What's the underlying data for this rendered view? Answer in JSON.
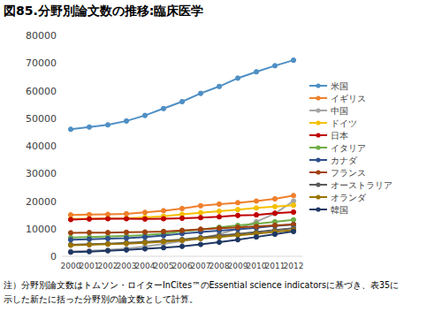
{
  "chart_data": {
    "type": "line",
    "title": "図85.分野別論文数の推移:臨床医学",
    "note": [
      "注）分野別論文数はトムソン・ロイターInCites™のEssential science indicatorsに基づき、表35に",
      "示した新たに括った分野別の論文数として計算。"
    ],
    "categories": [
      "2000",
      "2001",
      "2002",
      "2003",
      "2004",
      "2005",
      "2006",
      "2007",
      "2008",
      "2009",
      "2010",
      "2011",
      "2012"
    ],
    "ylim": [
      0,
      80000
    ],
    "yticks": [
      0,
      10000,
      20000,
      30000,
      40000,
      50000,
      60000,
      70000,
      80000
    ],
    "grid": false,
    "legend": "right",
    "marker": "circle",
    "series": [
      {
        "name": "米国",
        "color": "#4f8fc4",
        "values": [
          46000,
          46800,
          47600,
          49000,
          51000,
          53500,
          56000,
          59000,
          61500,
          64500,
          66800,
          69000,
          71000
        ]
      },
      {
        "name": "イギリス",
        "color": "#f0802c",
        "values": [
          15000,
          15100,
          15200,
          15400,
          15900,
          16500,
          17300,
          18300,
          18900,
          19400,
          20000,
          20800,
          22000
        ]
      },
      {
        "name": "中国",
        "color": "#a5a5a5",
        "values": [
          1800,
          2000,
          2300,
          2800,
          3500,
          4500,
          5500,
          6500,
          8000,
          10000,
          12500,
          15500,
          20000
        ]
      },
      {
        "name": "ドイツ",
        "color": "#f5c000",
        "values": [
          13500,
          13600,
          13700,
          13800,
          14100,
          14500,
          15200,
          15800,
          16300,
          16900,
          17500,
          18000,
          18500
        ]
      },
      {
        "name": "日本",
        "color": "#c00000",
        "values": [
          13300,
          13500,
          13600,
          13600,
          13500,
          13600,
          13800,
          14000,
          14300,
          14800,
          15000,
          15600,
          16000
        ]
      },
      {
        "name": "イタリア",
        "color": "#70ad47",
        "values": [
          6800,
          7000,
          7200,
          7400,
          7700,
          8200,
          9000,
          9700,
          10500,
          11200,
          11800,
          12500,
          13200
        ]
      },
      {
        "name": "カナダ",
        "color": "#2e4f8c",
        "values": [
          6000,
          6200,
          6400,
          6600,
          7000,
          7500,
          8200,
          8800,
          9300,
          9800,
          10300,
          11000,
          11500
        ]
      },
      {
        "name": "フランス",
        "color": "#a0420e",
        "values": [
          8500,
          8600,
          8600,
          8700,
          8800,
          9000,
          9400,
          9800,
          10200,
          10500,
          10800,
          11200,
          11500
        ]
      },
      {
        "name": "オーストラリア",
        "color": "#5a5a5a",
        "values": [
          4200,
          4400,
          4600,
          4900,
          5200,
          5600,
          6100,
          6800,
          7500,
          8100,
          8800,
          9500,
          10200
        ]
      },
      {
        "name": "オランダ",
        "color": "#9a7400",
        "values": [
          4000,
          4200,
          4400,
          4600,
          4900,
          5300,
          5800,
          6400,
          7000,
          7600,
          8200,
          8900,
          9500
        ]
      },
      {
        "name": "韓国",
        "color": "#1f3864",
        "values": [
          1500,
          1700,
          2000,
          2300,
          2700,
          3100,
          3600,
          4300,
          5100,
          6000,
          7000,
          8000,
          9000
        ]
      }
    ]
  }
}
